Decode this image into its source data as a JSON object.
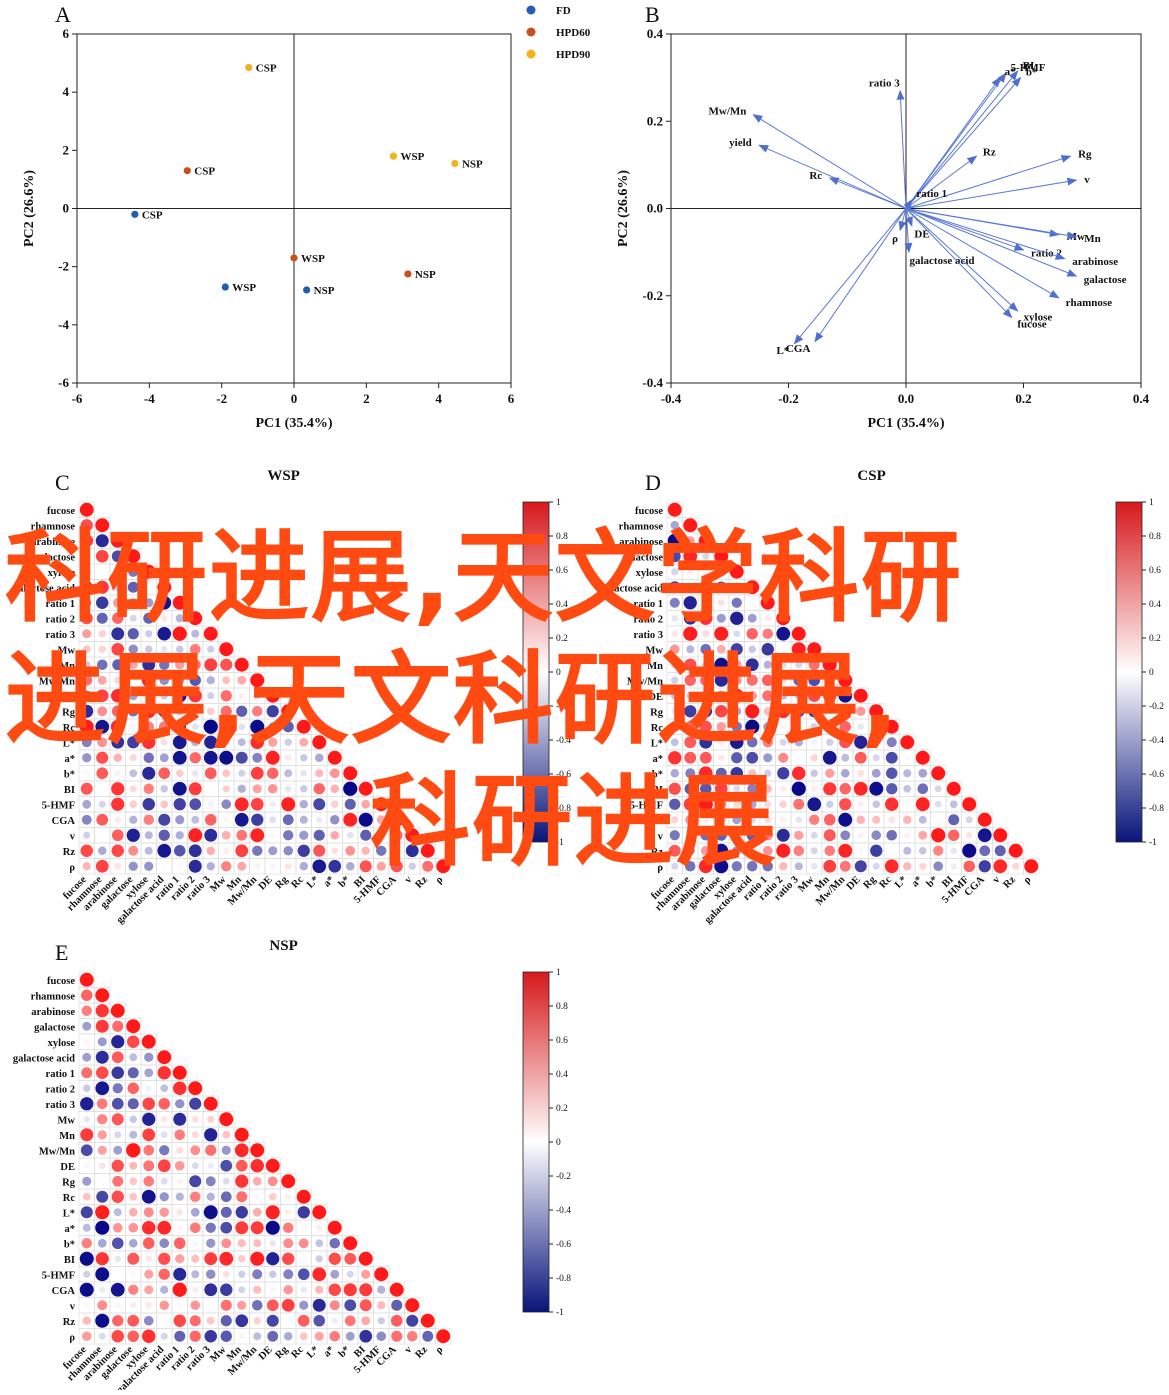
{
  "chart_data": [
    {
      "panel": "A",
      "type": "scatter",
      "xlabel": "PC1 (35.4%)",
      "ylabel": "PC2 (26.6%)",
      "xlim": [
        -6,
        6
      ],
      "ylim": [
        -6,
        6
      ],
      "xticks": [
        "-6",
        "-4",
        "-2",
        "0",
        "2",
        "4",
        "6"
      ],
      "yticks": [
        "-6",
        "-4",
        "-2",
        "0",
        "2",
        "4",
        "6"
      ],
      "legend_position": "top-right",
      "series": [
        {
          "name": "FD",
          "color": "#1f5fae",
          "points": [
            {
              "x": -4.4,
              "y": -0.2,
              "label": "CSP"
            },
            {
              "x": -1.9,
              "y": -2.7,
              "label": "WSP"
            },
            {
              "x": 0.35,
              "y": -2.8,
              "label": "NSP"
            }
          ]
        },
        {
          "name": "HPD60",
          "color": "#c8501e",
          "points": [
            {
              "x": -2.95,
              "y": 1.3,
              "label": "CSP"
            },
            {
              "x": 0.0,
              "y": -1.7,
              "label": "WSP"
            },
            {
              "x": 3.15,
              "y": -2.25,
              "label": "NSP"
            }
          ]
        },
        {
          "name": "HPD90",
          "color": "#f2b21b",
          "points": [
            {
              "x": -1.25,
              "y": 4.85,
              "label": "CSP"
            },
            {
              "x": 2.75,
              "y": 1.8,
              "label": "WSP"
            },
            {
              "x": 4.45,
              "y": 1.55,
              "label": "NSP"
            }
          ]
        }
      ]
    },
    {
      "panel": "B",
      "type": "biplot",
      "xlabel": "PC1 (35.4%)",
      "ylabel": "PC2 (26.6%)",
      "xlim": [
        -0.4,
        0.4
      ],
      "ylim": [
        -0.4,
        0.4
      ],
      "xticks": [
        "-0.4",
        "-0.2",
        "0.0",
        "0.2",
        "0.4"
      ],
      "yticks": [
        "-0.4",
        "-0.2",
        "0.0",
        "0.2",
        "0.4"
      ],
      "vectors": [
        {
          "label": "5-HMF",
          "x": 0.17,
          "y": 0.31
        },
        {
          "label": "BI",
          "x": 0.19,
          "y": 0.315
        },
        {
          "label": "a*",
          "x": 0.16,
          "y": 0.3
        },
        {
          "label": "b*",
          "x": 0.195,
          "y": 0.3
        },
        {
          "label": "ratio 3",
          "x": -0.01,
          "y": 0.27
        },
        {
          "label": "Mw/Mn",
          "x": -0.26,
          "y": 0.215
        },
        {
          "label": "yield",
          "x": -0.25,
          "y": 0.145
        },
        {
          "label": "Rc",
          "x": -0.13,
          "y": 0.07
        },
        {
          "label": "Rz",
          "x": 0.12,
          "y": 0.12
        },
        {
          "label": "Rg",
          "x": 0.28,
          "y": 0.12
        },
        {
          "label": "v",
          "x": 0.29,
          "y": 0.065
        },
        {
          "label": "ratio 1",
          "x": 0.01,
          "y": 0.02
        },
        {
          "label": "DE",
          "x": 0.01,
          "y": -0.04
        },
        {
          "label": "ρ",
          "x": -0.01,
          "y": -0.05
        },
        {
          "label": "Mw",
          "x": 0.26,
          "y": -0.06
        },
        {
          "label": "Mn",
          "x": 0.29,
          "y": -0.065
        },
        {
          "label": "ratio 2",
          "x": 0.2,
          "y": -0.095
        },
        {
          "label": "arabinose",
          "x": 0.27,
          "y": -0.115
        },
        {
          "label": "galactose",
          "x": 0.29,
          "y": -0.155
        },
        {
          "label": "rhamnose",
          "x": 0.26,
          "y": -0.205
        },
        {
          "label": "galactose acid",
          "x": 0.005,
          "y": -0.1
        },
        {
          "label": "xylose",
          "x": 0.19,
          "y": -0.235
        },
        {
          "label": "fucose",
          "x": 0.18,
          "y": -0.25
        },
        {
          "label": "L*",
          "x": -0.19,
          "y": -0.31
        },
        {
          "label": "CGA",
          "x": -0.155,
          "y": -0.305
        }
      ]
    },
    {
      "panel": "C",
      "type": "heatmap",
      "title": "WSP",
      "variables": [
        "fucose",
        "rhamnose",
        "arabinose",
        "galactose",
        "xylose",
        "galactose acid",
        "ratio 1",
        "ratio 2",
        "ratio 3",
        "Mw",
        "Mn",
        "Mw/Mn",
        "DE",
        "Rg",
        "Rc",
        "L*",
        "a*",
        "b*",
        "BI",
        "5-HMF",
        "CGA",
        "v",
        "Rz",
        "ρ"
      ],
      "colorbar_ticks": [
        "1",
        "0.8",
        "0.6",
        "0.4",
        "0.2",
        "0",
        "-0.2",
        "-0.4",
        "-0.6",
        "-0.8",
        "-1"
      ]
    },
    {
      "panel": "D",
      "type": "heatmap",
      "title": "CSP",
      "variables": [
        "fucose",
        "rhamnose",
        "arabinose",
        "galactose",
        "xylose",
        "galactose acid",
        "ratio 1",
        "ratio 2",
        "ratio 3",
        "Mw",
        "Mn",
        "Mw/Mn",
        "DE",
        "Rg",
        "Rc",
        "L*",
        "a*",
        "b*",
        "BI",
        "5-HMF",
        "CGA",
        "v",
        "Rz",
        "ρ"
      ],
      "colorbar_ticks": [
        "1",
        "0.8",
        "0.6",
        "0.4",
        "0.2",
        "0",
        "-0.2",
        "-0.4",
        "-0.6",
        "-0.8",
        "-1"
      ]
    },
    {
      "panel": "E",
      "type": "heatmap",
      "title": "NSP",
      "variables": [
        "fucose",
        "rhamnose",
        "arabinose",
        "galactose",
        "xylose",
        "galactose acid",
        "ratio 1",
        "ratio 2",
        "ratio 3",
        "Mw",
        "Mn",
        "Mw/Mn",
        "DE",
        "Rg",
        "Rc",
        "L*",
        "a*",
        "b*",
        "BI",
        "5-HMF",
        "CGA",
        "v",
        "Rz",
        "ρ"
      ],
      "colorbar_ticks": [
        "1",
        "0.8",
        "0.6",
        "0.4",
        "0.2",
        "0",
        "-0.2",
        "-0.4",
        "-0.6",
        "-0.8",
        "-1"
      ]
    }
  ],
  "watermark": {
    "line1": "科研进展,天文学科研",
    "line2": "进展,天文科研进展,",
    "line3": "科研进展"
  }
}
